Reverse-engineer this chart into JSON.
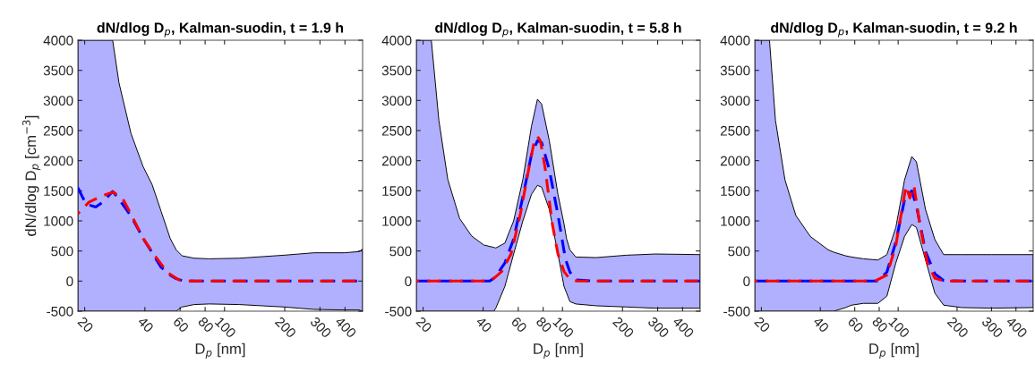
{
  "chart_data": [
    {
      "type": "line",
      "title": "dN/dlog D$_{p}$, Kalman-suodin, t = 1.9 h",
      "xlabel": "D$_{p}$ [nm]",
      "ylabel": "dN/dlog D$_{p}$ [cm$^{−3}$]",
      "log": "x",
      "xlim": [
        18.5,
        490
      ],
      "xticks": [
        20,
        40,
        60,
        80,
        100,
        200,
        300,
        400
      ],
      "ylim": [
        -500,
        4000
      ],
      "yticks": [
        -500,
        0,
        500,
        1000,
        1500,
        2000,
        2500,
        3000,
        3500,
        4000
      ],
      "grid": false,
      "line_style": "dashed",
      "marker": "none",
      "series": [
        {
          "color": "#0000ff",
          "x": [
            18.5,
            20.3,
            22.7,
            24.6,
            27.6,
            29.7,
            34.1,
            39.2,
            43.5,
            48.2,
            53.5,
            57.3,
            61.4,
            70.5,
            83.8,
            118.5,
            198,
            280,
            396,
            470,
            490
          ],
          "values": [
            1550,
            1280,
            1230,
            1310,
            1490,
            1360,
            1080,
            710,
            470,
            230,
            100,
            40,
            10,
            0,
            0,
            0,
            0,
            0,
            0,
            0,
            0
          ],
          "upper": [
            4000,
            4000,
            4000,
            4000,
            4000,
            3290,
            2450,
            1900,
            1600,
            1160,
            710,
            520,
            420,
            380,
            370,
            380,
            430,
            470,
            470,
            490,
            530
          ],
          "lower": [
            -500,
            -500,
            -500,
            -500,
            -500,
            -500,
            -500,
            -500,
            -500,
            -500,
            -500,
            -500,
            -430,
            -390,
            -380,
            -390,
            -430,
            -470,
            -480,
            -480,
            -500
          ]
        },
        {
          "color": "#ff0000",
          "x": [
            18.5,
            21.0,
            24.2,
            27.8,
            31.1,
            34.1,
            39.2,
            44.9,
            51.9,
            59.2,
            63.6,
            490
          ],
          "values": [
            1120,
            1310,
            1410,
            1480,
            1360,
            1110,
            710,
            420,
            140,
            20,
            0,
            0
          ]
        }
      ]
    },
    {
      "type": "line",
      "title": "dN/dlog D$_{p}$, Kalman-suodin, t = 5.8 h",
      "xlabel": "D$_{p}$ [nm]",
      "log": "x",
      "xlim": [
        18.5,
        490
      ],
      "xticks": [
        20,
        40,
        60,
        80,
        100,
        200,
        300,
        400
      ],
      "ylim": [
        -500,
        4000
      ],
      "yticks": [
        -500,
        0,
        500,
        1000,
        1500,
        2000,
        2500,
        3000,
        3500,
        4000
      ],
      "grid": false,
      "line_style": "dashed",
      "marker": "none",
      "series": [
        {
          "color": "#0000ff",
          "x": [
            18.5,
            22.0,
            24.0,
            26.6,
            30.5,
            35.0,
            40.3,
            43.2,
            45.3,
            46.3,
            51.4,
            56.9,
            63.3,
            69.9,
            74.9,
            78.6,
            85.9,
            94.9,
            101.8,
            104.9,
            108.9,
            116.6,
            147.5,
            209,
            293,
            490
          ],
          "values": [
            0,
            0,
            0,
            0,
            0,
            0,
            0,
            0,
            50,
            80,
            300,
            700,
            1400,
            2100,
            2330,
            2300,
            1850,
            1100,
            500,
            310,
            150,
            20,
            0,
            0,
            0,
            0
          ],
          "upper": [
            4000,
            4000,
            2670,
            1690,
            1040,
            750,
            600,
            575,
            560,
            550,
            630,
            1000,
            1690,
            2570,
            3020,
            2940,
            2330,
            1440,
            950,
            700,
            520,
            400,
            390,
            430,
            450,
            440
          ],
          "lower": [
            -500,
            -500,
            -500,
            -500,
            -500,
            -500,
            -500,
            -500,
            -500,
            -450,
            -90,
            450,
            1000,
            1440,
            1590,
            1560,
            1190,
            450,
            -90,
            -200,
            -340,
            -380,
            -410,
            -430,
            -450,
            -450
          ]
        },
        {
          "color": "#ff0000",
          "x": [
            18.5,
            43.2,
            44.7,
            49.6,
            55.2,
            61.3,
            67.9,
            72.3,
            74.9,
            77.5,
            81.8,
            88.9,
            94.9,
            101.8,
            108.9,
            119,
            490
          ],
          "values": [
            0,
            0,
            30,
            160,
            450,
            1090,
            1880,
            2330,
            2400,
            2330,
            1880,
            950,
            450,
            160,
            30,
            0,
            0
          ]
        }
      ]
    },
    {
      "type": "line",
      "title": "dN/dlog D$_{p}$, Kalman-suodin, t = 9.2 h",
      "xlabel": "D$_{p}$ [nm]",
      "log": "x",
      "xlim": [
        18.5,
        490
      ],
      "xticks": [
        20,
        40,
        60,
        80,
        100,
        200,
        300,
        400
      ],
      "ylim": [
        -500,
        4000
      ],
      "yticks": [
        -500,
        0,
        500,
        1000,
        1500,
        2000,
        2500,
        3000,
        3500,
        4000
      ],
      "grid": false,
      "line_style": "dashed",
      "marker": "none",
      "series": [
        {
          "color": "#0000ff",
          "x": [
            18.5,
            22.0,
            23.6,
            26.4,
            30.0,
            35.6,
            43.9,
            46.9,
            53.9,
            57.7,
            66.5,
            78.8,
            87.6,
            97.3,
            107.8,
            117.4,
            124,
            138,
            154,
            170.8,
            212,
            300,
            490
          ],
          "values": [
            0,
            0,
            0,
            0,
            0,
            0,
            0,
            0,
            0,
            0,
            0,
            0,
            150,
            650,
            1350,
            1500,
            1250,
            490,
            120,
            10,
            0,
            0,
            0
          ],
          "upper": [
            4000,
            4000,
            2670,
            1680,
            1090,
            740,
            520,
            480,
            420,
            400,
            370,
            350,
            440,
            890,
            1680,
            2070,
            1980,
            1190,
            690,
            440,
            440,
            440,
            440
          ],
          "lower": [
            -500,
            -500,
            -500,
            -500,
            -500,
            -500,
            -500,
            -500,
            -440,
            -400,
            -370,
            -370,
            -250,
            300,
            740,
            940,
            890,
            350,
            -200,
            -400,
            -440,
            -450,
            -440
          ]
        },
        {
          "color": "#ff0000",
          "x": [
            18.5,
            75.8,
            87.6,
            97.3,
            104.6,
            109.6,
            114.9,
            120.5,
            129,
            141,
            154,
            170.8,
            490
          ],
          "values": [
            0,
            0,
            100,
            590,
            1190,
            1580,
            1380,
            1580,
            940,
            300,
            50,
            0,
            0
          ]
        }
      ]
    }
  ]
}
